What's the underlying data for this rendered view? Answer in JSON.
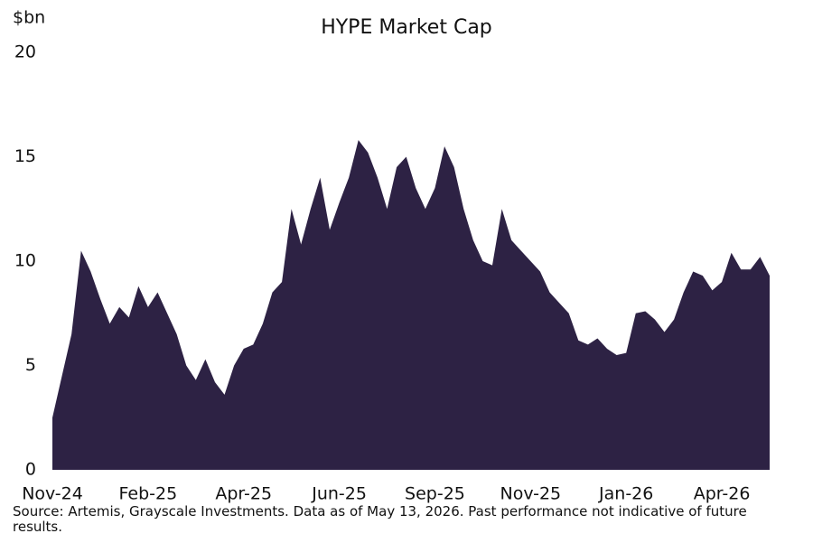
{
  "chart_data": {
    "type": "area",
    "title": "HYPE Market Cap",
    "ylabel": "$bn",
    "note": "Source: Artemis, Grayscale Investments. Data as of May 13, 2026. Past performance not indicative of future results.",
    "categories": [
      "Nov-24",
      null,
      null,
      null,
      null,
      null,
      null,
      null,
      null,
      null,
      "Feb-25",
      null,
      null,
      null,
      null,
      null,
      null,
      null,
      null,
      null,
      "Apr-25",
      null,
      null,
      null,
      null,
      null,
      null,
      null,
      null,
      null,
      "Jun-25",
      null,
      null,
      null,
      null,
      null,
      null,
      null,
      null,
      null,
      "Sep-25",
      null,
      null,
      null,
      null,
      null,
      null,
      null,
      null,
      null,
      "Nov-25",
      null,
      null,
      null,
      null,
      null,
      null,
      null,
      null,
      null,
      "Jan-26",
      null,
      null,
      null,
      null,
      null,
      null,
      null,
      null,
      null,
      "Apr-26",
      null,
      null,
      null,
      null,
      null
    ],
    "values": [
      2.5,
      4.5,
      6.5,
      10.5,
      9.5,
      8.2,
      7.0,
      7.8,
      7.3,
      8.8,
      7.8,
      8.5,
      7.5,
      6.5,
      5.0,
      4.3,
      5.3,
      4.2,
      3.6,
      5.0,
      5.8,
      6.0,
      7.0,
      8.5,
      9.0,
      12.5,
      10.8,
      12.5,
      14.0,
      11.5,
      12.8,
      14.0,
      15.8,
      15.2,
      14.0,
      12.5,
      14.5,
      15.0,
      13.5,
      12.5,
      13.5,
      15.5,
      14.5,
      12.5,
      11.0,
      10.0,
      9.8,
      12.5,
      11.0,
      10.5,
      10.0,
      9.5,
      8.5,
      8.0,
      7.5,
      6.2,
      6.0,
      6.3,
      5.8,
      5.5,
      5.6,
      7.5,
      7.6,
      7.2,
      6.6,
      7.2,
      8.5,
      9.5,
      9.3,
      8.6,
      9.0,
      10.4,
      9.6,
      9.6,
      10.2,
      9.3
    ],
    "color": "#2d2244",
    "ylim": [
      0,
      20
    ],
    "yticks": [
      0,
      5,
      10,
      15,
      20
    ],
    "grid": false
  }
}
